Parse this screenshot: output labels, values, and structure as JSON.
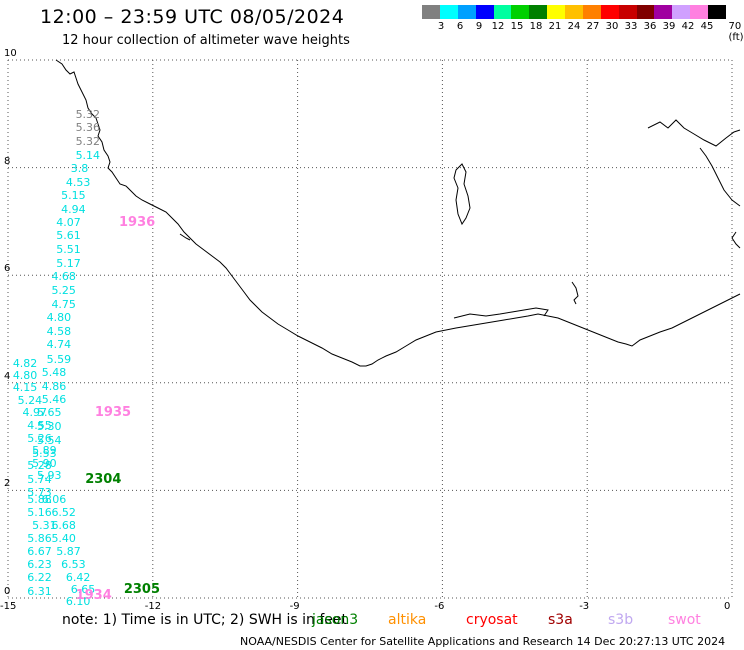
{
  "header": {
    "title": "12:00 – 23:59 UTC 08/05/2024",
    "subtitle": "12 hour collection of altimeter wave heights"
  },
  "color_scale": {
    "swatches": [
      "#808080",
      "#00ffff",
      "#00a0ff",
      "#0000ff",
      "#00ffa0",
      "#00d000",
      "#008000",
      "#ffff00",
      "#ffc000",
      "#ff8000",
      "#ff0000",
      "#c80000",
      "#800000",
      "#a000a0",
      "#d0a0ff",
      "#ff80e0",
      "#000000"
    ],
    "labels": [
      "3",
      "6",
      "9",
      "12",
      "15",
      "18",
      "21",
      "24",
      "27",
      "30",
      "33",
      "36",
      "39",
      "42",
      "45",
      "70 (ft)"
    ]
  },
  "axes": {
    "x_ticks": [
      "-15",
      "-12",
      "-9",
      "-6",
      "-3",
      "0"
    ],
    "y_ticks": [
      "0",
      "2",
      "4",
      "6",
      "8",
      "10"
    ]
  },
  "chart_data": {
    "type": "scatter",
    "x_range": [
      -15,
      0
    ],
    "y_range": [
      0,
      10
    ],
    "swh_values": [
      {
        "lon": -13.6,
        "lat": 8.98,
        "text": "5.32",
        "color": "#808080"
      },
      {
        "lon": -13.6,
        "lat": 8.73,
        "text": "5.36",
        "color": "#808080"
      },
      {
        "lon": -13.6,
        "lat": 8.48,
        "text": "5.32",
        "color": "#808080"
      },
      {
        "lon": -13.6,
        "lat": 8.22,
        "text": "5.14",
        "color": "#00e0e0"
      },
      {
        "lon": -13.7,
        "lat": 7.97,
        "text": "3.8",
        "color": "#00e0e0"
      },
      {
        "lon": -13.8,
        "lat": 7.72,
        "text": "4.53",
        "color": "#00e0e0"
      },
      {
        "lon": -13.9,
        "lat": 7.47,
        "text": "5.15",
        "color": "#00e0e0"
      },
      {
        "lon": -13.9,
        "lat": 7.22,
        "text": "4.94",
        "color": "#00e0e0"
      },
      {
        "lon": -14.0,
        "lat": 6.97,
        "text": "4.07",
        "color": "#00e0e0"
      },
      {
        "lon": -14.0,
        "lat": 6.72,
        "text": "5.61",
        "color": "#00e0e0"
      },
      {
        "lon": -14.0,
        "lat": 6.46,
        "text": "5.51",
        "color": "#00e0e0"
      },
      {
        "lon": -14.0,
        "lat": 6.21,
        "text": "5.17",
        "color": "#00e0e0"
      },
      {
        "lon": -14.1,
        "lat": 5.96,
        "text": "4.68",
        "color": "#00e0e0"
      },
      {
        "lon": -14.1,
        "lat": 5.7,
        "text": "5.25",
        "color": "#00e0e0"
      },
      {
        "lon": -14.1,
        "lat": 5.45,
        "text": "4.75",
        "color": "#00e0e0"
      },
      {
        "lon": -14.2,
        "lat": 5.2,
        "text": "4.80",
        "color": "#00e0e0"
      },
      {
        "lon": -14.2,
        "lat": 4.95,
        "text": "4.58",
        "color": "#00e0e0"
      },
      {
        "lon": -14.2,
        "lat": 4.7,
        "text": "4.74",
        "color": "#00e0e0"
      },
      {
        "lon": -14.2,
        "lat": 4.43,
        "text": "5.59",
        "color": "#00e0e0"
      },
      {
        "lon": -14.3,
        "lat": 4.18,
        "text": "5.48",
        "color": "#00e0e0"
      },
      {
        "lon": -14.3,
        "lat": 3.93,
        "text": "4.86",
        "color": "#00e0e0"
      },
      {
        "lon": -14.3,
        "lat": 3.68,
        "text": "5.46",
        "color": "#00e0e0"
      },
      {
        "lon": -14.4,
        "lat": 3.43,
        "text": "5.65",
        "color": "#00e0e0"
      },
      {
        "lon": -14.4,
        "lat": 3.17,
        "text": "5.30",
        "color": "#00e0e0"
      },
      {
        "lon": -14.4,
        "lat": 2.92,
        "text": "5.54",
        "color": "#00e0e0"
      },
      {
        "lon": -14.5,
        "lat": 2.68,
        "text": "5.53",
        "color": "#00e0e0"
      },
      {
        "lon": -14.6,
        "lat": 2.45,
        "text": "5.28",
        "color": "#00e0e0"
      },
      {
        "lon": -14.6,
        "lat": 2.2,
        "text": "5.74",
        "color": "#00e0e0"
      },
      {
        "lon": -14.6,
        "lat": 1.95,
        "text": "5.73",
        "color": "#00e0e0"
      },
      {
        "lon": -14.9,
        "lat": 4.35,
        "text": "4.82",
        "color": "#00e0e0"
      },
      {
        "lon": -14.9,
        "lat": 4.12,
        "text": "4.80",
        "color": "#00e0e0"
      },
      {
        "lon": -14.9,
        "lat": 3.9,
        "text": "4.15",
        "color": "#00e0e0"
      },
      {
        "lon": -14.8,
        "lat": 3.67,
        "text": "5.24",
        "color": "#00e0e0"
      },
      {
        "lon": -14.7,
        "lat": 3.43,
        "text": "4.97",
        "color": "#00e0e0"
      },
      {
        "lon": -14.6,
        "lat": 3.2,
        "text": "4.55",
        "color": "#00e0e0"
      },
      {
        "lon": -14.6,
        "lat": 2.96,
        "text": "5.26",
        "color": "#00e0e0"
      },
      {
        "lon": -14.5,
        "lat": 2.73,
        "text": "5.89",
        "color": "#00e0e0"
      },
      {
        "lon": -14.5,
        "lat": 2.5,
        "text": "5.90",
        "color": "#00e0e0"
      },
      {
        "lon": -14.4,
        "lat": 2.27,
        "text": "5.93",
        "color": "#00e0e0"
      },
      {
        "lon": -14.3,
        "lat": 1.82,
        "text": "6.06",
        "color": "#00e0e0"
      },
      {
        "lon": -14.1,
        "lat": 1.58,
        "text": "6.52",
        "color": "#00e0e0"
      },
      {
        "lon": -14.1,
        "lat": 1.33,
        "text": "6.68",
        "color": "#00e0e0"
      },
      {
        "lon": -14.1,
        "lat": 1.09,
        "text": "5.40",
        "color": "#00e0e0"
      },
      {
        "lon": -14.0,
        "lat": 0.85,
        "text": "5.87",
        "color": "#00e0e0"
      },
      {
        "lon": -13.9,
        "lat": 0.61,
        "text": "6.53",
        "color": "#00e0e0"
      },
      {
        "lon": -13.8,
        "lat": 0.37,
        "text": "6.42",
        "color": "#00e0e0"
      },
      {
        "lon": -13.7,
        "lat": 0.14,
        "text": "6.65",
        "color": "#00e0e0"
      },
      {
        "lon": -13.8,
        "lat": -0.07,
        "text": "6.10",
        "color": "#00e0e0"
      },
      {
        "lon": -14.6,
        "lat": 1.82,
        "text": "5.88",
        "color": "#00e0e0"
      },
      {
        "lon": -14.6,
        "lat": 1.58,
        "text": "5.16",
        "color": "#00e0e0"
      },
      {
        "lon": -14.5,
        "lat": 1.33,
        "text": "5.31",
        "color": "#00e0e0"
      },
      {
        "lon": -14.6,
        "lat": 1.09,
        "text": "5.86",
        "color": "#00e0e0"
      },
      {
        "lon": -14.6,
        "lat": 0.85,
        "text": "6.67",
        "color": "#00e0e0"
      },
      {
        "lon": -14.6,
        "lat": 0.61,
        "text": "6.23",
        "color": "#00e0e0"
      },
      {
        "lon": -14.6,
        "lat": 0.37,
        "text": "6.22",
        "color": "#00e0e0"
      },
      {
        "lon": -14.6,
        "lat": 0.12,
        "text": "6.31",
        "color": "#00e0e0"
      }
    ],
    "pass_times": [
      {
        "lon": -12.7,
        "lat": 6.97,
        "text": "1936",
        "color": "#ff80e0"
      },
      {
        "lon": -13.2,
        "lat": 3.43,
        "text": "1935",
        "color": "#ff80e0"
      },
      {
        "lon": -13.4,
        "lat": 2.2,
        "text": "2304",
        "color": "#008000"
      },
      {
        "lon": -12.6,
        "lat": 0.14,
        "text": "2305",
        "color": "#008000"
      },
      {
        "lon": -13.6,
        "lat": 0.03,
        "text": "1934",
        "color": "#ff80e0"
      }
    ]
  },
  "note": "note:  1) Time is in UTC;  2) SWH is in feet",
  "satellites": [
    {
      "name": "jason3",
      "color": "#008000"
    },
    {
      "name": "altika",
      "color": "#ff9000"
    },
    {
      "name": "cryosat",
      "color": "#ff0000"
    },
    {
      "name": "s3a",
      "color": "#a00000"
    },
    {
      "name": "s3b",
      "color": "#c0a8f0"
    },
    {
      "name": "swot",
      "color": "#ff80e0"
    }
  ],
  "footer": "NOAA/NESDIS Center for Satellite Applications and Research    14 Dec 20:27:13 UTC 2024"
}
